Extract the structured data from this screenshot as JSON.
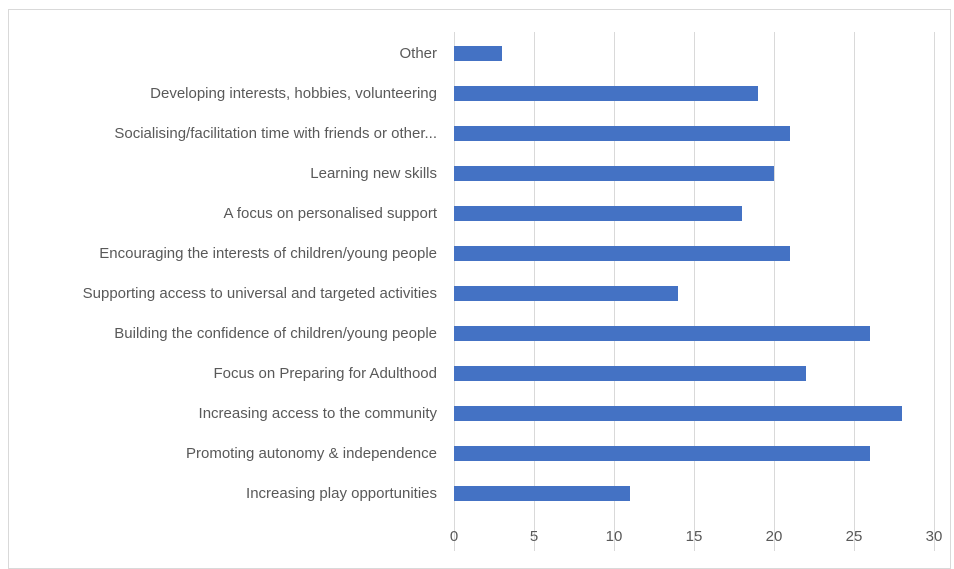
{
  "chart_data": {
    "type": "bar",
    "orientation": "horizontal",
    "categories": [
      "Other",
      "Developing interests, hobbies, volunteering",
      "Socialising/facilitation time with friends or other...",
      "Learning new skills",
      "A focus on personalised support",
      "Encouraging the interests of children/young people",
      "Supporting access to universal and targeted activities",
      "Building the confidence of children/young people",
      "Focus on Preparing for Adulthood",
      "Increasing access to the community",
      "Promoting autonomy & independence",
      "Increasing play opportunities"
    ],
    "values": [
      3,
      19,
      21,
      20,
      18,
      21,
      14,
      26,
      22,
      28,
      26,
      11
    ],
    "xlim": [
      0,
      30
    ],
    "xticks": [
      "0",
      "5",
      "10",
      "15",
      "20",
      "25",
      "30"
    ],
    "title": "",
    "xlabel": "",
    "ylabel": "",
    "grid": "vertical",
    "legend": "none",
    "bar_color": "#4472c4"
  }
}
